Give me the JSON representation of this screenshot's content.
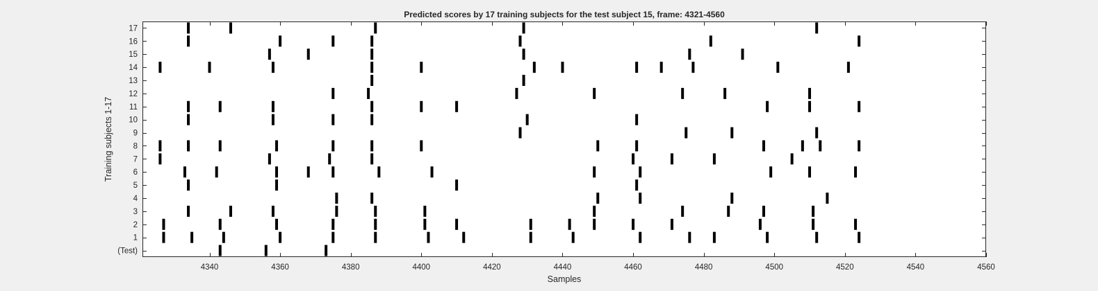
{
  "chart_data": {
    "type": "scatter",
    "title": "Predicted scores by 17 training subjects for the test subject 15, frame: 4321-4560",
    "xlabel": "Samples",
    "ylabel": "Training subjects 1-17",
    "xlim": [
      4321,
      4560
    ],
    "xticks": [
      4340,
      4360,
      4380,
      4400,
      4420,
      4440,
      4460,
      4480,
      4500,
      4520,
      4540,
      4560
    ],
    "ylim": [
      -0.5,
      17.5
    ],
    "grid": false,
    "marker": "vertical-bar",
    "marker_color": "#000000",
    "rows": [
      {
        "label": "(Test)",
        "y": 0,
        "x": [
          4343,
          4356,
          4373
        ]
      },
      {
        "label": "1",
        "y": 1,
        "x": [
          4327,
          4335,
          4344,
          4360,
          4375,
          4387,
          4402,
          4412,
          4431,
          4443,
          4462,
          4476,
          4483,
          4498,
          4512,
          4524
        ]
      },
      {
        "label": "2",
        "y": 2,
        "x": [
          4327,
          4343,
          4359,
          4375,
          4387,
          4401,
          4410,
          4431,
          4442,
          4449,
          4460,
          4471,
          4496,
          4511,
          4523
        ]
      },
      {
        "label": "3",
        "y": 3,
        "x": [
          4334,
          4346,
          4358,
          4376,
          4387,
          4401,
          4449,
          4474,
          4487,
          4497,
          4511
        ]
      },
      {
        "label": "4",
        "y": 4,
        "x": [
          4376,
          4386,
          4450,
          4462,
          4488,
          4515
        ]
      },
      {
        "label": "5",
        "y": 5,
        "x": [
          4334,
          4359,
          4410,
          4461
        ]
      },
      {
        "label": "6",
        "y": 6,
        "x": [
          4333,
          4342,
          4359,
          4368,
          4375,
          4388,
          4403,
          4449,
          4462,
          4499,
          4510,
          4523
        ]
      },
      {
        "label": "7",
        "y": 7,
        "x": [
          4326,
          4357,
          4374,
          4386,
          4460,
          4471,
          4483,
          4505
        ]
      },
      {
        "label": "8",
        "y": 8,
        "x": [
          4326,
          4334,
          4343,
          4359,
          4375,
          4386,
          4400,
          4450,
          4461,
          4497,
          4508,
          4513,
          4524
        ]
      },
      {
        "label": "9",
        "y": 9,
        "x": [
          4428,
          4475,
          4488,
          4512
        ]
      },
      {
        "label": "10",
        "y": 10,
        "x": [
          4334,
          4358,
          4375,
          4386,
          4430,
          4461
        ]
      },
      {
        "label": "11",
        "y": 11,
        "x": [
          4334,
          4343,
          4358,
          4386,
          4400,
          4410,
          4498,
          4510,
          4524
        ]
      },
      {
        "label": "12",
        "y": 12,
        "x": [
          4375,
          4385,
          4427,
          4449,
          4474,
          4486,
          4510
        ]
      },
      {
        "label": "13",
        "y": 13,
        "x": [
          4386,
          4429
        ]
      },
      {
        "label": "14",
        "y": 14,
        "x": [
          4326,
          4340,
          4358,
          4386,
          4400,
          4432,
          4440,
          4461,
          4468,
          4477,
          4501,
          4521
        ]
      },
      {
        "label": "15",
        "y": 15,
        "x": [
          4357,
          4368,
          4386,
          4429,
          4476,
          4491
        ]
      },
      {
        "label": "16",
        "y": 16,
        "x": [
          4334,
          4360,
          4375,
          4386,
          4428,
          4482,
          4524
        ]
      },
      {
        "label": "17",
        "y": 17,
        "x": [
          4334,
          4346,
          4387,
          4429,
          4512
        ]
      }
    ]
  }
}
